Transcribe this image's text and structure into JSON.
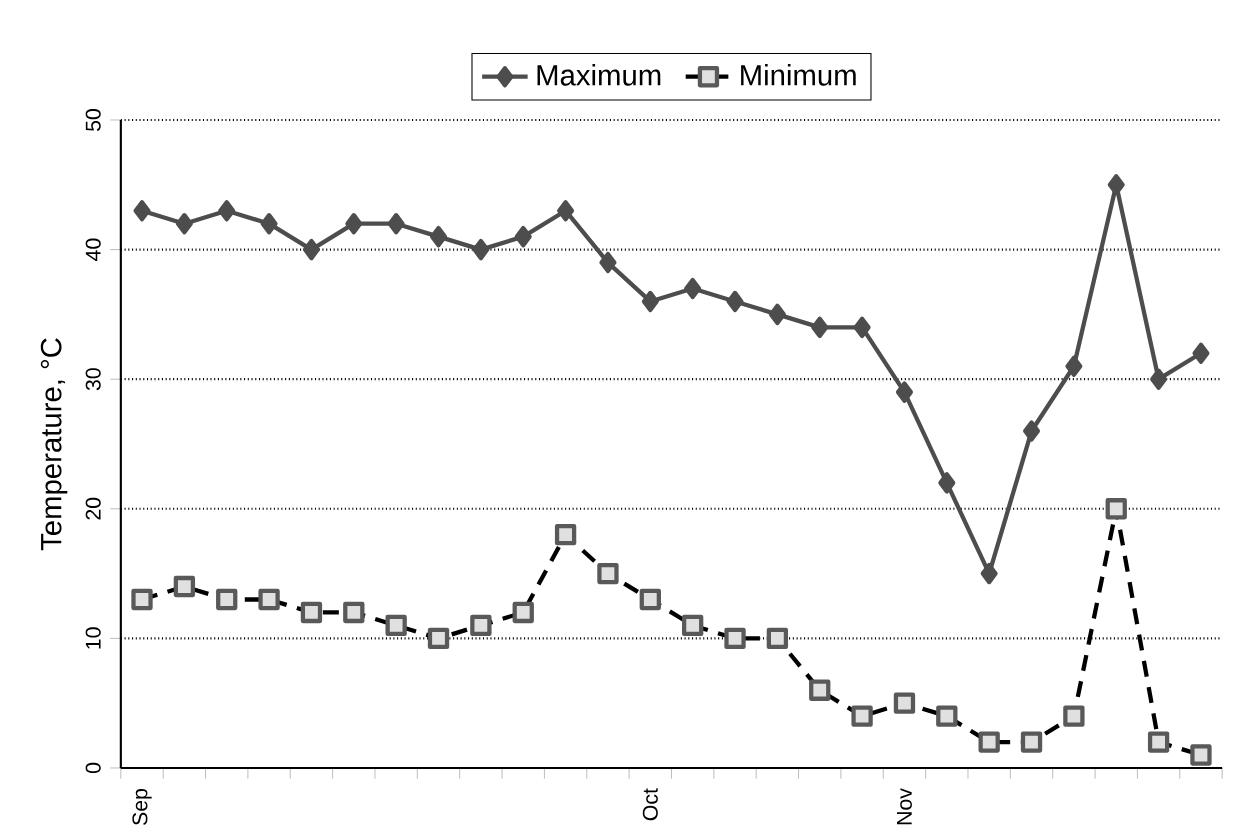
{
  "chart_data": {
    "type": "line",
    "ylabel": "Temperature, °C",
    "categories": [
      "Sep",
      null,
      null,
      null,
      null,
      null,
      null,
      null,
      null,
      null,
      null,
      null,
      "Oct",
      null,
      null,
      null,
      null,
      null,
      "Nov",
      null,
      null,
      null,
      null,
      null,
      null,
      null
    ],
    "series": [
      {
        "name": "Maximum",
        "color": "#4d4d4d",
        "marker": "diamond",
        "line_style": "solid",
        "values": [
          43,
          42,
          43,
          42,
          40,
          42,
          42,
          41,
          40,
          41,
          43,
          39,
          36,
          37,
          36,
          35,
          34,
          34,
          29,
          22,
          15,
          26,
          31,
          45,
          30,
          32
        ]
      },
      {
        "name": "Minimum",
        "color": "#000000",
        "marker": "square",
        "line_style": "dashed",
        "values": [
          13,
          14,
          13,
          13,
          12,
          12,
          11,
          10,
          11,
          12,
          18,
          15,
          13,
          11,
          10,
          10,
          6,
          4,
          5,
          4,
          2,
          2,
          4,
          20,
          2,
          1
        ]
      }
    ],
    "ylim": [
      0,
      50
    ],
    "yticks": [
      0,
      10,
      20,
      30,
      40,
      50
    ],
    "grid": "y",
    "legend": "top"
  }
}
